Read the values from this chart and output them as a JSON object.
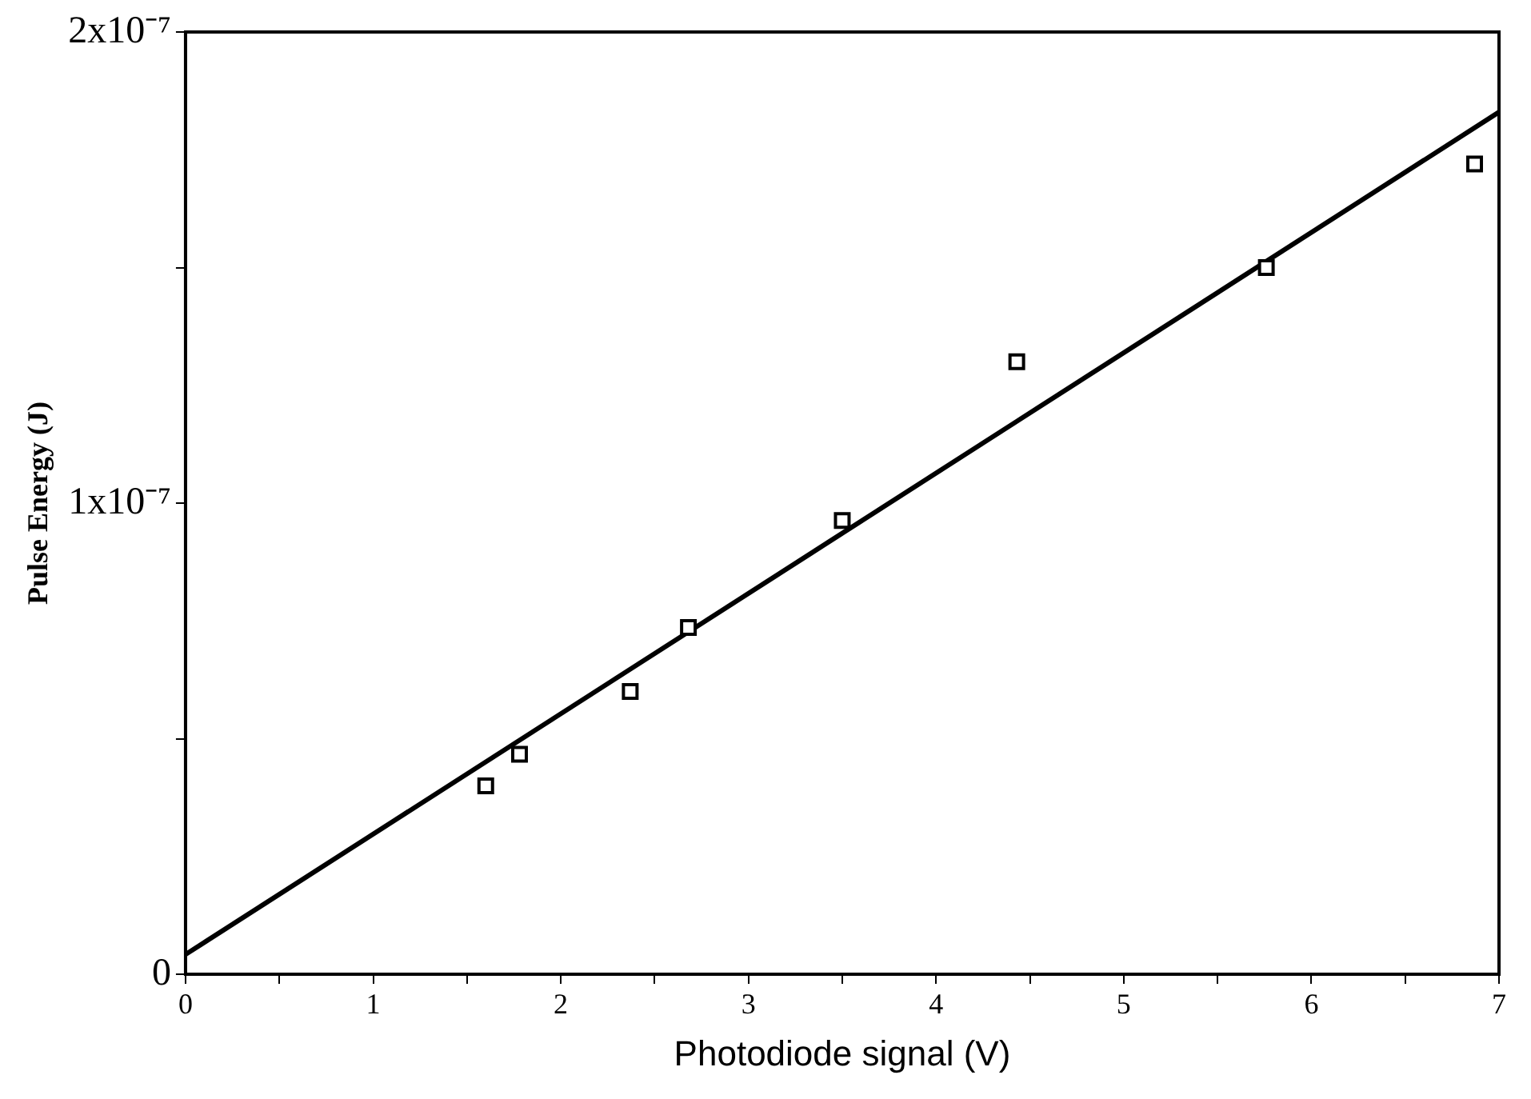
{
  "chart_data": {
    "type": "scatter",
    "xlabel": "Photodiode signal (V)",
    "ylabel": "Pulse Energy (J)",
    "xlim": [
      0,
      7
    ],
    "ylim": [
      0,
      2e-07
    ],
    "xticks": [
      0,
      {
        "value": 0.5,
        "label": null
      },
      1,
      {
        "value": 1.5,
        "label": null
      },
      2,
      {
        "value": 2.5,
        "label": null
      },
      3,
      {
        "value": 3.5,
        "label": null
      },
      4,
      {
        "value": 4.5,
        "label": null
      },
      5,
      {
        "value": 5.5,
        "label": null
      },
      6,
      {
        "value": 6.5,
        "label": null
      },
      7
    ],
    "yticks": [
      0,
      {
        "value": 5e-08,
        "label": null
      },
      {
        "value": 1e-07,
        "label": "1x10⁻⁷"
      },
      {
        "value": 1.5e-07,
        "label": null
      },
      {
        "value": 2e-07,
        "label": "2x10⁻⁷"
      }
    ],
    "grid": false,
    "legend": false,
    "series": [
      {
        "type": "scatter",
        "marker": "square",
        "color": "#000000",
        "x": [
          1.6,
          1.78,
          2.37,
          2.68,
          3.5,
          4.43,
          5.76,
          6.87
        ],
        "values": [
          4e-08,
          4.67e-08,
          6e-08,
          7.36e-08,
          9.63e-08,
          1.3e-07,
          1.5e-07,
          1.72e-07
        ]
      },
      {
        "type": "line",
        "marker": "none",
        "color": "#000000",
        "x": [
          0,
          7
        ],
        "values": [
          4.2e-09,
          1.83e-07
        ]
      }
    ]
  }
}
